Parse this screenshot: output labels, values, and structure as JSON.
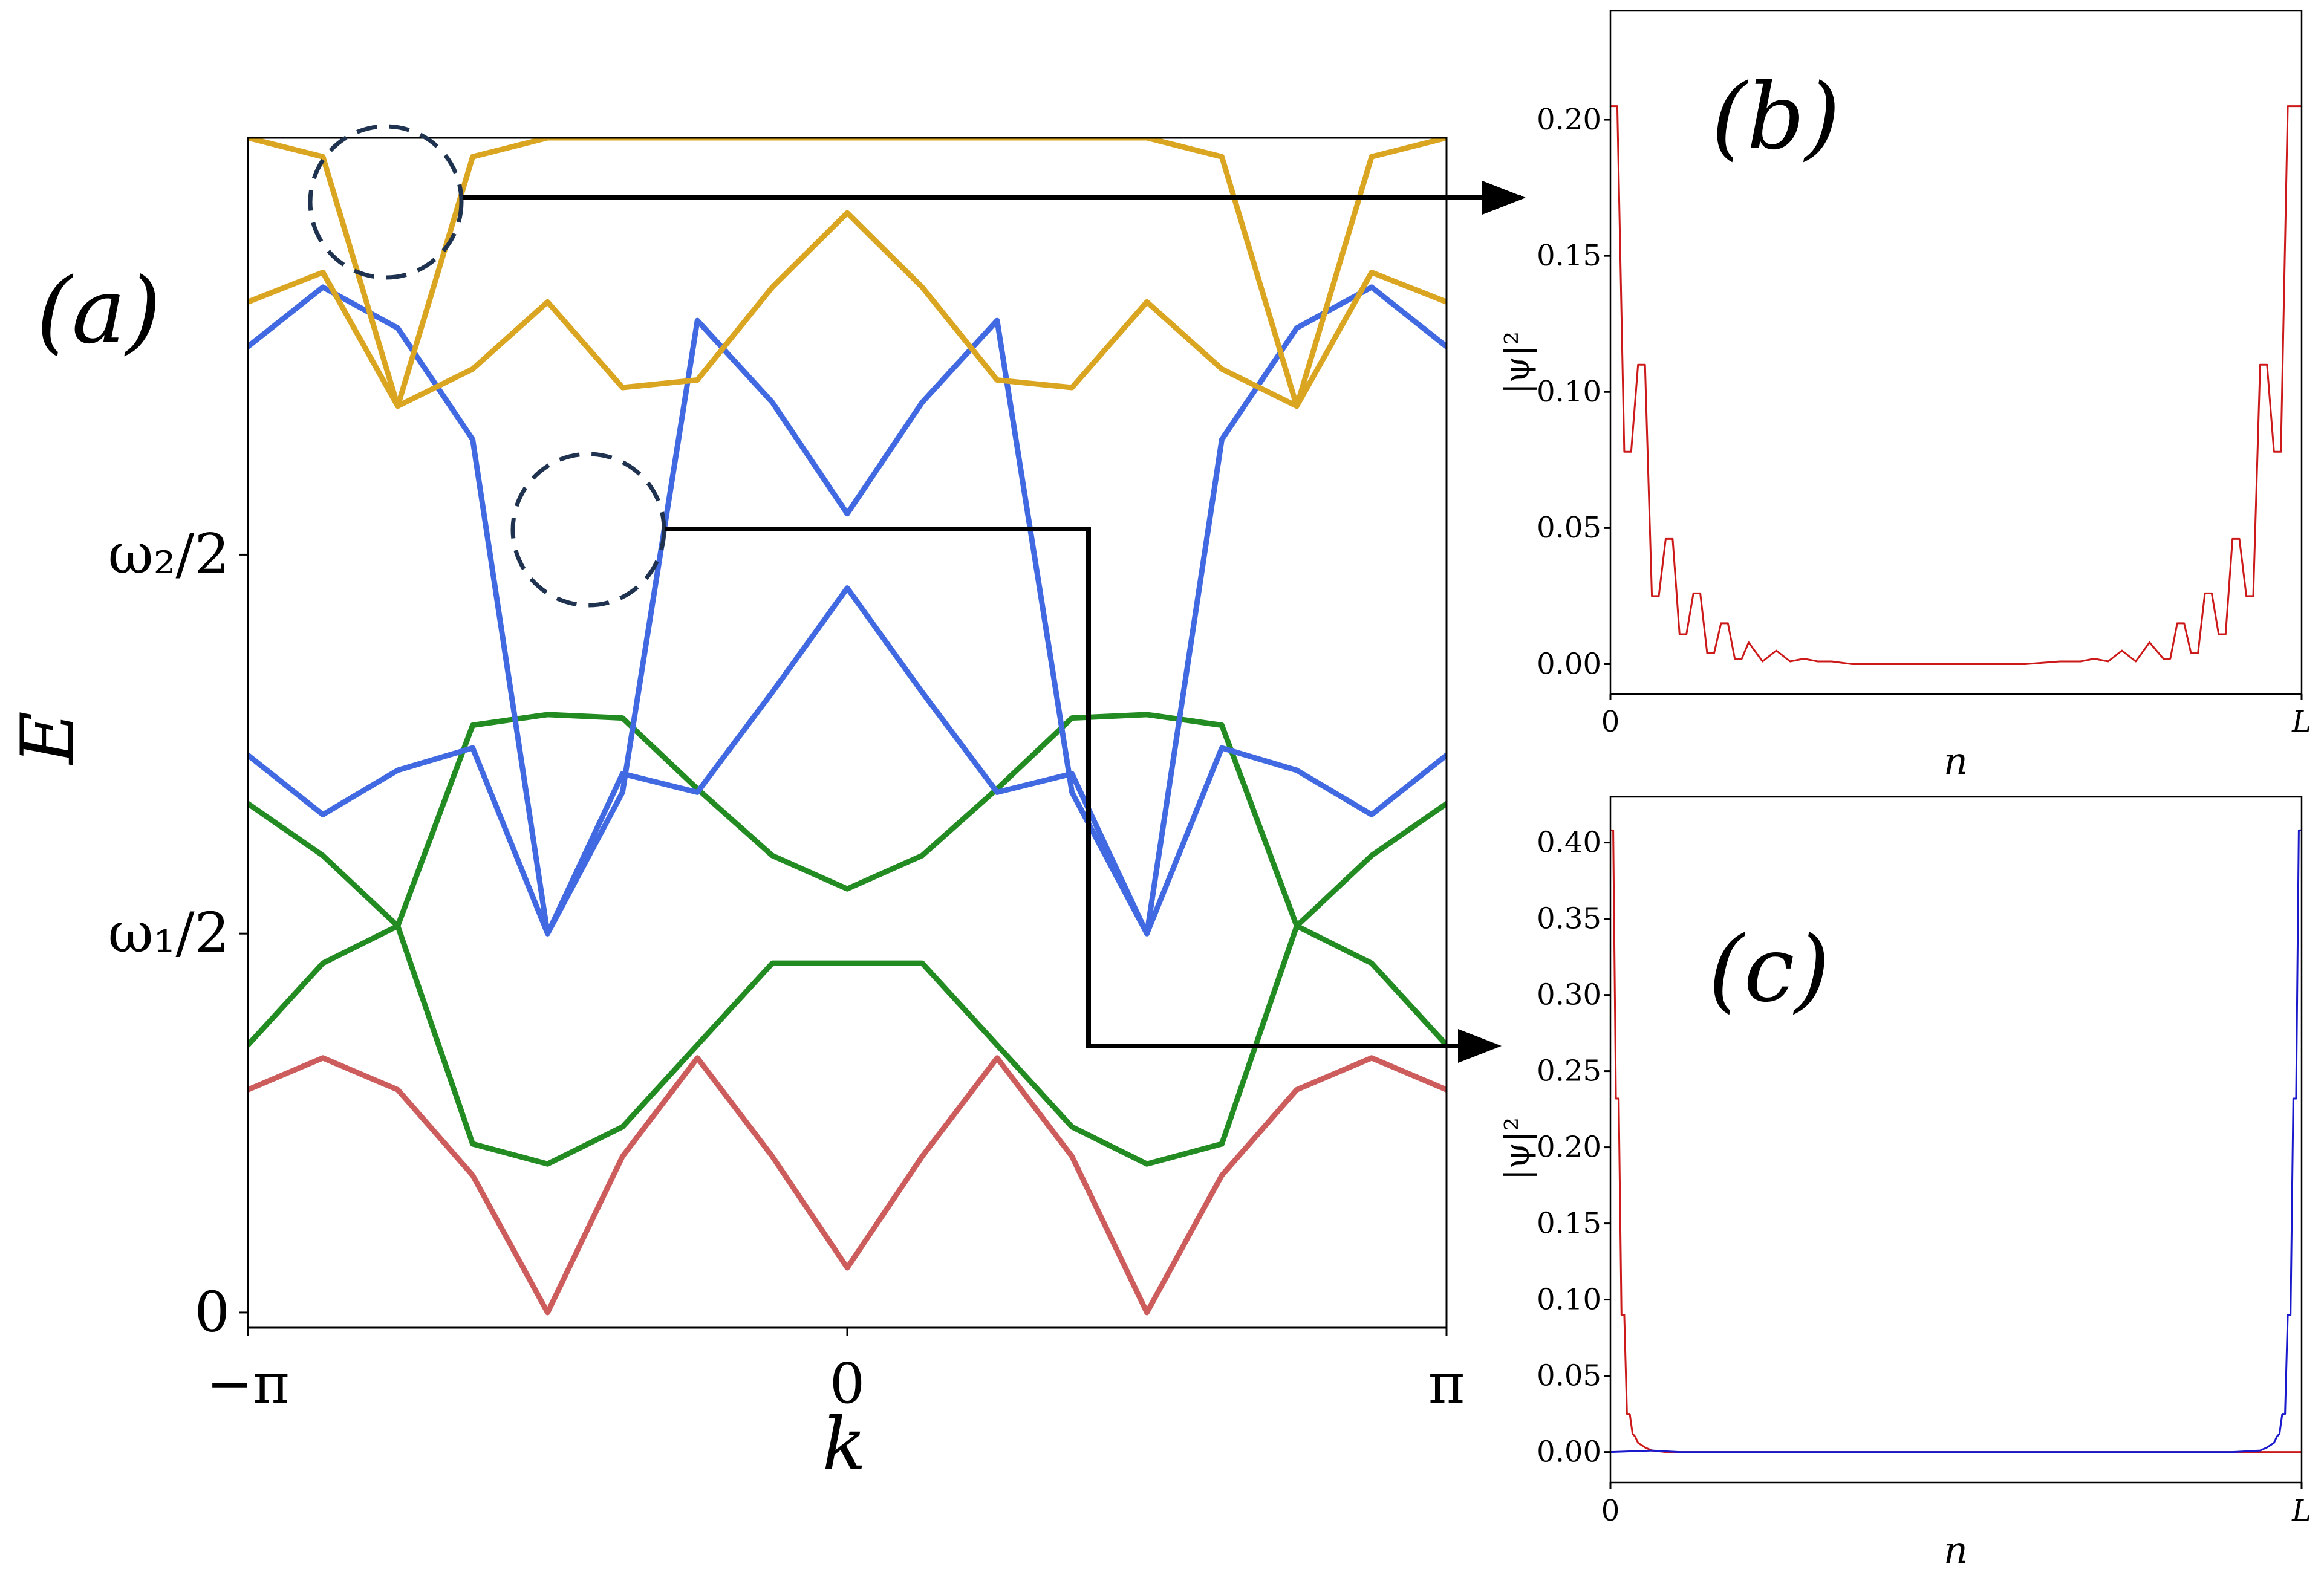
{
  "colors": {
    "gold": "#DAA520",
    "blue": "#4169E1",
    "green": "#228B22",
    "red": "#CD5C5C",
    "gray": "#808080",
    "profile_red": "#CC1A1A",
    "profile_blue": "#1A1ACC",
    "circle": "#1F3350",
    "axis": "#000000"
  },
  "chart_data": [
    {
      "id": "a",
      "type": "line",
      "panel_label": "(a)",
      "xlabel": "k",
      "ylabel": "E",
      "xticks": [
        "−π",
        "0",
        "π"
      ],
      "xtick_values": [
        -3.14159,
        0,
        3.14159
      ],
      "yticks": [
        "0",
        "ω₁/2",
        "ω₂/2"
      ],
      "ytick_values": [
        0,
        1,
        2
      ],
      "xlim": [
        -3.14159,
        3.14159
      ],
      "ylim": [
        -0.04,
        3.1
      ],
      "grid": false,
      "series": [
        {
          "color_key": "red",
          "x": [
            -3.1416,
            -2.7489,
            -2.3562,
            -1.9635,
            -1.5708,
            -1.1781,
            -0.7854,
            -0.3927,
            0,
            0.3927,
            0.7854,
            1.1781,
            1.5708,
            1.9635,
            2.3562,
            2.7489,
            3.1416
          ],
          "y": [
            0.588,
            0.672,
            0.588,
            0.362,
            0,
            0.412,
            0.672,
            0.412,
            0.118,
            0.412,
            0.672,
            0.412,
            0,
            0.362,
            0.588,
            0.672,
            0.588
          ]
        },
        {
          "color_key": "green",
          "x": [
            -3.1416,
            -2.7489,
            -2.3562,
            -1.9635,
            -1.5708,
            -1.1781,
            -0.7854,
            -0.3927,
            0,
            0.3927,
            0.7854,
            1.1781,
            1.5708,
            1.9635,
            2.3562,
            2.7489,
            3.1416
          ],
          "y": [
            0.706,
            0.922,
            1.02,
            0.445,
            0.392,
            0.49,
            0.706,
            0.922,
            0.922,
            0.922,
            0.706,
            0.49,
            0.392,
            0.445,
            1.02,
            0.922,
            0.706
          ]
        },
        {
          "color_key": "green",
          "x": [
            -3.1416,
            -2.7489,
            -2.3562,
            -1.9635,
            -1.5708,
            -1.1781,
            -0.7854,
            -0.3927,
            0,
            0.3927,
            0.7854,
            1.1781,
            1.5708,
            1.9635,
            2.3562,
            2.7489,
            3.1416
          ],
          "y": [
            1.343,
            1.206,
            1.02,
            1.55,
            1.578,
            1.569,
            1.382,
            1.206,
            1.118,
            1.206,
            1.382,
            1.569,
            1.578,
            1.55,
            1.02,
            1.206,
            1.343
          ]
        },
        {
          "color_key": "blue",
          "x": [
            -3.1416,
            -2.7489,
            -2.3562,
            -1.9635,
            -1.5708,
            -1.1781,
            -0.7854,
            -0.3927,
            0,
            0.3927,
            0.7854,
            1.1781,
            1.5708,
            1.9635,
            2.3562,
            2.7489,
            3.1416
          ],
          "y": [
            1.471,
            1.314,
            1.431,
            1.49,
            1.0,
            1.422,
            1.373,
            1.637,
            1.912,
            1.637,
            1.373,
            1.422,
            1.0,
            1.49,
            1.431,
            1.314,
            1.471
          ]
        },
        {
          "color_key": "blue",
          "x": [
            -3.1416,
            -2.7489,
            -2.3562,
            -1.9635,
            -1.5708,
            -1.1781,
            -0.7854,
            -0.3927,
            0,
            0.3927,
            0.7854,
            1.1781,
            1.5708,
            1.9635,
            2.3562,
            2.7489,
            3.1416
          ],
          "y": [
            2.549,
            2.706,
            2.598,
            2.304,
            1.0,
            1.373,
            2.618,
            2.402,
            2.108,
            2.402,
            2.618,
            1.373,
            1.0,
            2.304,
            2.598,
            2.706,
            2.549
          ]
        },
        {
          "color_key": "gold",
          "x": [
            -3.1416,
            -2.7489,
            -2.3562,
            -1.9635,
            -1.5708,
            -1.1781,
            -0.7854,
            -0.3927,
            0,
            0.3927,
            0.7854,
            1.1781,
            1.5708,
            1.9635,
            2.3562,
            2.7489,
            3.1416
          ],
          "y": [
            2.667,
            2.745,
            2.392,
            2.49,
            2.667,
            2.441,
            2.461,
            2.706,
            2.902,
            2.706,
            2.461,
            2.441,
            2.667,
            2.49,
            2.392,
            2.745,
            2.667
          ]
        },
        {
          "color_key": "gold",
          "x": [
            -3.1416,
            -2.7489,
            -2.3562,
            -1.9635,
            -1.5708,
            -1.1781,
            -0.7854,
            -0.3927,
            0,
            0.3927,
            0.7854,
            1.1781,
            1.5708,
            1.9635,
            2.3562,
            2.7489,
            3.1416
          ],
          "y": [
            3.1,
            3.05,
            2.392,
            3.05,
            3.1,
            3.1,
            3.1,
            3.1,
            3.1,
            3.1,
            3.1,
            3.1,
            3.1,
            3.05,
            2.392,
            3.05,
            3.1
          ]
        }
      ]
    },
    {
      "id": "b",
      "type": "line",
      "panel_label": "(b)",
      "xlabel": "n",
      "ylabel": "|ψ|²",
      "xticks": [
        "0",
        "L"
      ],
      "yticks": [
        "0.00",
        "0.05",
        "0.10",
        "0.15",
        "0.20"
      ],
      "ytick_values": [
        0,
        0.05,
        0.1,
        0.15,
        0.2
      ],
      "xlim": [
        0,
        100
      ],
      "ylim": [
        -0.011,
        0.24
      ],
      "grid": false,
      "series": [
        {
          "color_key": "profile_red",
          "x": [
            0,
            1,
            2,
            3,
            4,
            5,
            6,
            7,
            8,
            9,
            10,
            11,
            12,
            13,
            14,
            15,
            16,
            17,
            18,
            19,
            20,
            22,
            24,
            26,
            28,
            30,
            32,
            35,
            40,
            45,
            50,
            55,
            60,
            65,
            68,
            70,
            72,
            74,
            76,
            78,
            80,
            81,
            82,
            83,
            84,
            85,
            86,
            87,
            88,
            89,
            90,
            91,
            92,
            93,
            94,
            95,
            96,
            97,
            98,
            99,
            100
          ],
          "y": [
            0.205,
            0.205,
            0.078,
            0.078,
            0.11,
            0.11,
            0.025,
            0.025,
            0.046,
            0.046,
            0.011,
            0.011,
            0.026,
            0.026,
            0.004,
            0.004,
            0.015,
            0.015,
            0.002,
            0.002,
            0.008,
            0.001,
            0.005,
            0.001,
            0.002,
            0.001,
            0.001,
            0.0,
            0.0,
            0.0,
            0.0,
            0.0,
            0.0,
            0.001,
            0.001,
            0.002,
            0.001,
            0.005,
            0.001,
            0.008,
            0.002,
            0.002,
            0.015,
            0.015,
            0.004,
            0.004,
            0.026,
            0.026,
            0.011,
            0.011,
            0.046,
            0.046,
            0.025,
            0.025,
            0.11,
            0.11,
            0.078,
            0.078,
            0.205,
            0.205,
            0.205
          ]
        }
      ]
    },
    {
      "id": "c",
      "type": "line",
      "panel_label": "(c)",
      "xlabel": "n",
      "ylabel": "|ψ|²",
      "xticks": [
        "0",
        "L"
      ],
      "yticks": [
        "0.00",
        "0.05",
        "0.10",
        "0.15",
        "0.20",
        "0.25",
        "0.30",
        "0.35",
        "0.40"
      ],
      "ytick_values": [
        0,
        0.05,
        0.1,
        0.15,
        0.2,
        0.25,
        0.3,
        0.35,
        0.4
      ],
      "xlim": [
        0,
        100
      ],
      "ylim": [
        -0.02,
        0.43
      ],
      "grid": false,
      "series": [
        {
          "color_key": "profile_red",
          "x": [
            0,
            0.4,
            0.8,
            1.2,
            1.6,
            2.0,
            2.4,
            2.8,
            3.2,
            3.6,
            4.0,
            5,
            6,
            8,
            10,
            100
          ],
          "y": [
            0.408,
            0.408,
            0.232,
            0.232,
            0.09,
            0.09,
            0.025,
            0.025,
            0.012,
            0.01,
            0.006,
            0.003,
            0.001,
            0.0,
            0.0,
            0.0
          ]
        },
        {
          "color_key": "profile_blue",
          "x": [
            0,
            6,
            10,
            90,
            94,
            95,
            96,
            96.4,
            96.8,
            97.2,
            97.6,
            98.0,
            98.4,
            98.8,
            99.2,
            99.6,
            100
          ],
          "y": [
            0.0,
            0.001,
            0.0,
            0.0,
            0.001,
            0.003,
            0.006,
            0.01,
            0.012,
            0.025,
            0.025,
            0.09,
            0.09,
            0.232,
            0.232,
            0.408,
            0.408
          ]
        }
      ]
    }
  ]
}
